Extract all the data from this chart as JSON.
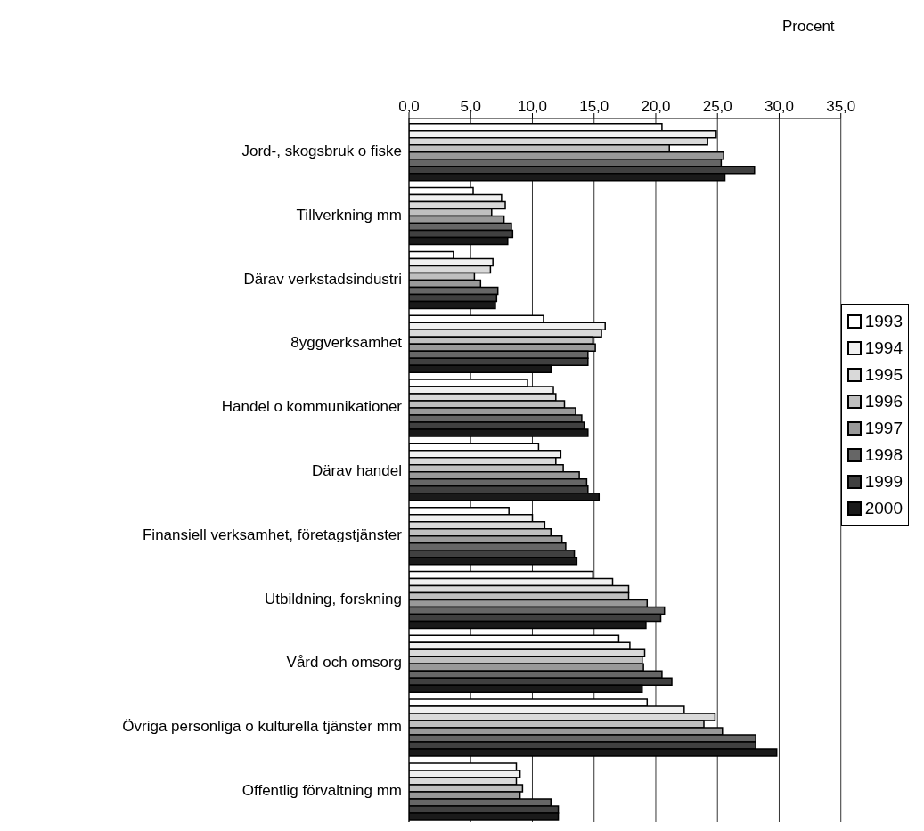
{
  "chart_data": {
    "type": "bar",
    "orientation": "horizontal",
    "xlabel": "Procent",
    "categories": [
      "Jord-, skogsbruk o fiske",
      "Tillverkning mm",
      "Därav verkstadsindustri",
      "8yggverksamhet",
      "Handel o kommunikationer",
      "Därav handel",
      "Finansiell verksamhet, företagstjänster",
      "Utbildning, forskning",
      "Vård och omsorg",
      "Övriga personliga o kulturella tjänster mm",
      "Offentlig förvaltning mm"
    ],
    "series": [
      {
        "name": "1993",
        "color": "#ffffff",
        "values": [
          20.5,
          5.2,
          3.6,
          10.9,
          9.6,
          10.5,
          8.1,
          14.9,
          17.0,
          19.3,
          8.7
        ]
      },
      {
        "name": "1994",
        "color": "#f0f0f0",
        "values": [
          24.9,
          7.5,
          6.8,
          15.9,
          11.7,
          12.3,
          10.0,
          16.5,
          17.9,
          22.3,
          9.0
        ]
      },
      {
        "name": "1995",
        "color": "#d9d9d9",
        "values": [
          24.2,
          7.8,
          6.6,
          15.6,
          11.9,
          11.9,
          11.0,
          17.8,
          19.1,
          24.8,
          8.7
        ]
      },
      {
        "name": "1996",
        "color": "#bfbfbf",
        "values": [
          21.1,
          6.7,
          5.3,
          14.9,
          12.6,
          12.5,
          11.5,
          17.8,
          18.9,
          23.9,
          9.2
        ]
      },
      {
        "name": "1997",
        "color": "#999999",
        "values": [
          25.5,
          7.7,
          5.8,
          15.1,
          13.5,
          13.8,
          12.4,
          19.3,
          19.0,
          25.4,
          9.0
        ]
      },
      {
        "name": "1998",
        "color": "#666666",
        "values": [
          25.3,
          8.3,
          7.2,
          14.5,
          14.0,
          14.4,
          12.7,
          20.7,
          20.5,
          28.1,
          11.5
        ]
      },
      {
        "name": "1999",
        "color": "#404040",
        "values": [
          28.0,
          8.4,
          7.1,
          14.5,
          14.2,
          14.5,
          13.4,
          20.4,
          21.3,
          28.1,
          12.1
        ]
      },
      {
        "name": "2000",
        "color": "#1a1a1a",
        "values": [
          25.6,
          8.0,
          7.0,
          11.5,
          14.5,
          15.4,
          13.6,
          19.2,
          18.9,
          29.8,
          12.1
        ]
      }
    ],
    "xlim": [
      0,
      35
    ],
    "xticks": [
      {
        "value": 0,
        "label": "0,0"
      },
      {
        "value": 5,
        "label": "5,0"
      },
      {
        "value": 10,
        "label": "10,0"
      },
      {
        "value": 15,
        "label": "15,0"
      },
      {
        "value": 20,
        "label": "20,0"
      },
      {
        "value": 25,
        "label": "25,0"
      },
      {
        "value": 30,
        "label": "30,0"
      },
      {
        "value": 35,
        "label": "35,0"
      }
    ],
    "grid": "x",
    "legend": "right"
  }
}
